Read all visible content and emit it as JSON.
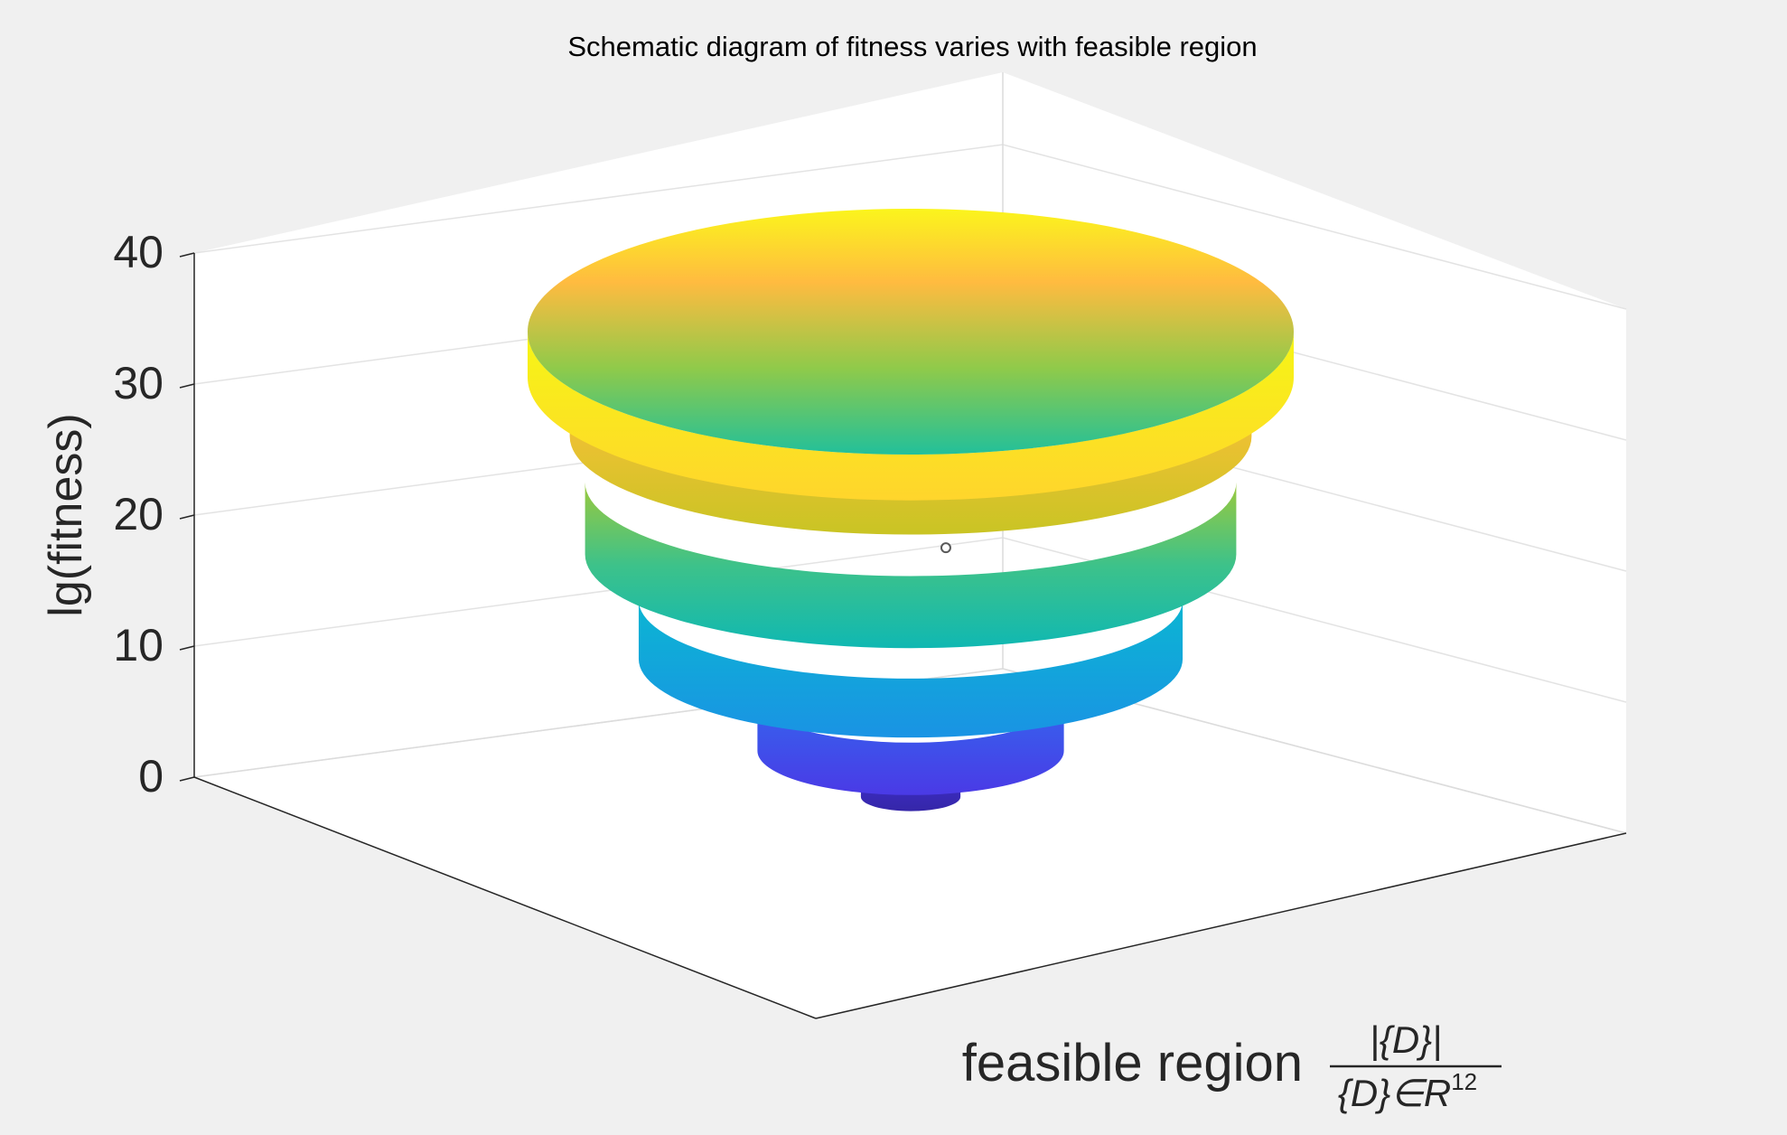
{
  "chart_data": {
    "type": "surface",
    "title": "Schematic diagram of fitness varies with feasible region",
    "zlabel": "lg(fitness)",
    "xlabel": {
      "prefix": "feasible region",
      "numerator": "|{D}|",
      "denominator_base": "{D}∈R",
      "denominator_exp": "12"
    },
    "zlim": [
      0,
      40
    ],
    "zticks": [
      "0",
      "10",
      "20",
      "30",
      "40"
    ],
    "grid": true,
    "colormap": "parula",
    "tiers": [
      {
        "z_bottom": -1.5,
        "z_top": 0,
        "radius": 0.13
      },
      {
        "z_bottom": 2,
        "z_top": 6,
        "radius": 0.4
      },
      {
        "z_bottom": 9,
        "z_top": 13.5,
        "radius": 0.71
      },
      {
        "z_bottom": 17,
        "z_top": 22.5,
        "radius": 0.85
      },
      {
        "z_bottom": 26,
        "z_top": 30,
        "radius": 0.89
      },
      {
        "z_bottom": 30.5,
        "z_top": 34,
        "radius": 1.0
      }
    ],
    "marker": {
      "x": 0.04,
      "y": 0.03,
      "z": 15
    }
  }
}
